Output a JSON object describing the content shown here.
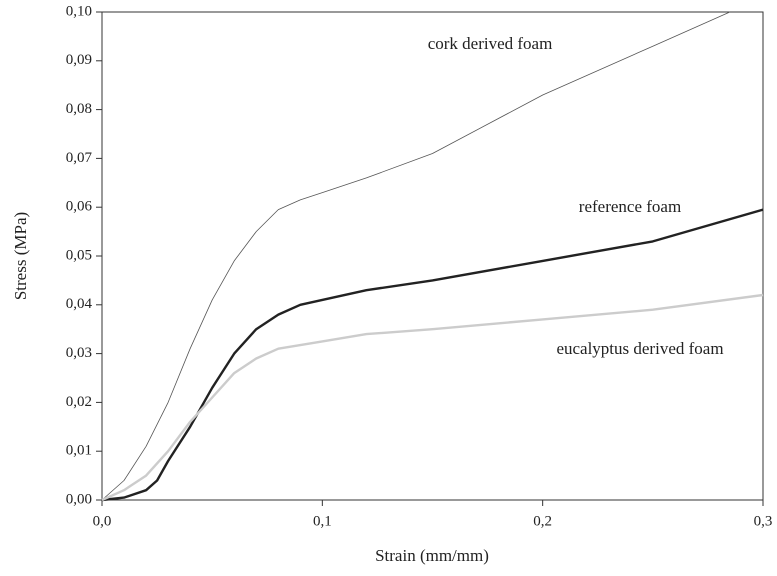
{
  "chart_data": {
    "type": "line",
    "x_label": "Strain (mm/mm)",
    "y_label": "Stress (MPa)",
    "xlim": [
      0,
      0.3
    ],
    "ylim": [
      0,
      0.1
    ],
    "xticks": [
      {
        "value": 0,
        "label": "0,0"
      },
      {
        "value": 0.1,
        "label": "0,1"
      },
      {
        "value": 0.2,
        "label": "0,2"
      },
      {
        "value": 0.3,
        "label": "0,3"
      }
    ],
    "yticks": [
      {
        "value": 0,
        "label": "0,00"
      },
      {
        "value": 0.01,
        "label": "0,01"
      },
      {
        "value": 0.02,
        "label": "0,02"
      },
      {
        "value": 0.03,
        "label": "0,03"
      },
      {
        "value": 0.04,
        "label": "0,04"
      },
      {
        "value": 0.05,
        "label": "0,05"
      },
      {
        "value": 0.06,
        "label": "0,06"
      },
      {
        "value": 0.07,
        "label": "0,07"
      },
      {
        "value": 0.08,
        "label": "0,08"
      },
      {
        "value": 0.09,
        "label": "0,09"
      },
      {
        "value": 0.1,
        "label": "0,10"
      }
    ],
    "series": [
      {
        "name": "cork derived foam",
        "color": "#555555",
        "x": [
          0,
          0.01,
          0.02,
          0.03,
          0.04,
          0.05,
          0.06,
          0.07,
          0.08,
          0.09,
          0.1,
          0.12,
          0.15,
          0.2,
          0.25,
          0.285
        ],
        "values": [
          0,
          0.004,
          0.011,
          0.02,
          0.031,
          0.041,
          0.049,
          0.055,
          0.0595,
          0.0615,
          0.063,
          0.066,
          0.071,
          0.083,
          0.093,
          0.1
        ]
      },
      {
        "name": "reference foam",
        "color": "#222222",
        "x": [
          0,
          0.01,
          0.02,
          0.025,
          0.03,
          0.04,
          0.05,
          0.06,
          0.07,
          0.08,
          0.09,
          0.1,
          0.12,
          0.15,
          0.2,
          0.25,
          0.3
        ],
        "values": [
          0,
          0.0005,
          0.002,
          0.004,
          0.008,
          0.015,
          0.023,
          0.03,
          0.035,
          0.038,
          0.04,
          0.041,
          0.043,
          0.045,
          0.049,
          0.053,
          0.0595
        ]
      },
      {
        "name": "eucalyptus derived foam",
        "color": "#cccccc",
        "x": [
          0,
          0.01,
          0.02,
          0.03,
          0.04,
          0.05,
          0.06,
          0.07,
          0.08,
          0.1,
          0.12,
          0.15,
          0.2,
          0.25,
          0.3
        ],
        "values": [
          0,
          0.002,
          0.005,
          0.01,
          0.016,
          0.021,
          0.026,
          0.029,
          0.031,
          0.0325,
          0.034,
          0.035,
          0.037,
          0.039,
          0.042
        ]
      }
    ]
  }
}
